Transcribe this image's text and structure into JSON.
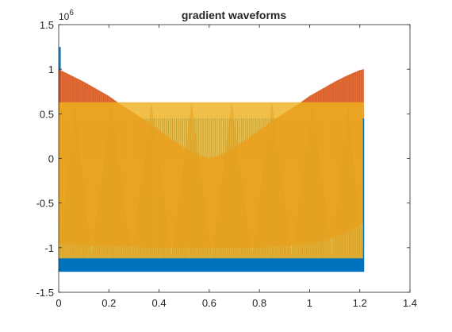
{
  "chart_data": {
    "type": "line",
    "title": "gradient waveforms",
    "xlabel": "",
    "ylabel": "",
    "xlim": [
      0,
      1.4
    ],
    "ylim": [
      -1.5,
      1.5
    ],
    "y_exponent_label": "10",
    "y_exponent_power": "6",
    "x_ticks": [
      0,
      0.2,
      0.4,
      0.6,
      0.8,
      1.0,
      1.2,
      1.4
    ],
    "x_tick_labels": [
      "0",
      "0.2",
      "0.4",
      "0.6",
      "0.8",
      "1",
      "1.2",
      "1.4"
    ],
    "y_ticks": [
      1.5,
      1.0,
      0.5,
      0,
      -0.5,
      -1.0,
      -1.5
    ],
    "y_tick_labels": [
      "1.5",
      "1",
      "0.5",
      "0",
      "-0.5",
      "-1",
      "-1.5"
    ],
    "grid": false,
    "legend": "none",
    "series": [
      {
        "color": "#0072BD",
        "x": [
          0,
          1.215
        ],
        "upper": [
          0.45,
          0.45
        ],
        "lower": [
          -1.27,
          -1.27
        ],
        "note_point": {
          "x": 0.005,
          "y": 1.25
        },
        "band_bottom": [
          -1.11,
          -1.27
        ]
      },
      {
        "color": "#D95319",
        "x": [
          0,
          0.05,
          0.1,
          0.15,
          0.2,
          0.25,
          0.3,
          0.35,
          0.4,
          0.45,
          0.5,
          0.55,
          0.6,
          0.65,
          0.7,
          0.75,
          0.8,
          0.85,
          0.9,
          0.95,
          1.0,
          1.05,
          1.1,
          1.15,
          1.2,
          1.215
        ],
        "upper": [
          1.0,
          0.93,
          0.86,
          0.78,
          0.7,
          0.6,
          0.51,
          0.42,
          0.32,
          0.22,
          0.12,
          0.05,
          0.0,
          0.05,
          0.12,
          0.22,
          0.32,
          0.42,
          0.51,
          0.6,
          0.7,
          0.78,
          0.86,
          0.93,
          0.99,
          1.0
        ],
        "lower": [
          -0.95,
          -0.96,
          -0.97,
          -0.98,
          -0.98,
          -0.99,
          -0.99,
          -1.0,
          -1.0,
          -1.0,
          -1.0,
          -1.0,
          -1.0,
          -1.0,
          -1.0,
          -1.0,
          -1.0,
          -0.99,
          -0.98,
          -0.97,
          -0.95,
          -0.93,
          -0.88,
          -0.82,
          -0.75,
          -0.72
        ]
      },
      {
        "color": "#EDB120",
        "x": [
          0,
          1.215
        ],
        "upper": [
          0.63,
          0.63
        ],
        "lower": [
          -1.12,
          -1.12
        ],
        "triangle_peaks_x": [
          0.0,
          0.13,
          0.29,
          0.45,
          0.61,
          0.77,
          0.93,
          1.09,
          1.215
        ],
        "triangle_low": -1.1,
        "triangle_high": 0.63
      }
    ]
  }
}
